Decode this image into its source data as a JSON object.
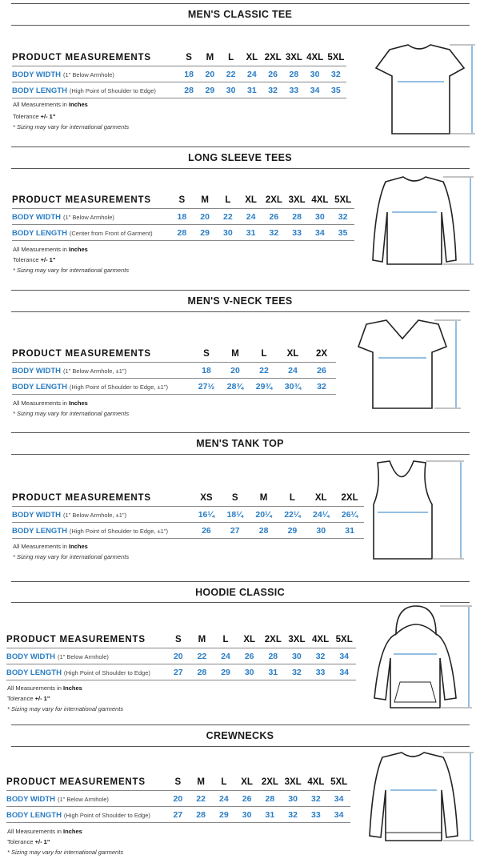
{
  "colors": {
    "accent": "#2a7dc4",
    "text": "#111111",
    "rule": "#555555"
  },
  "sections": [
    {
      "title": "MEN'S CLASSIC TEE",
      "header": "PRODUCT MEASUREMENTS",
      "sizes": [
        "S",
        "M",
        "L",
        "XL",
        "2XL",
        "3XL",
        "4XL",
        "5XL"
      ],
      "rows": [
        {
          "label": "BODY WIDTH",
          "note": "(1\" Below Armhole)",
          "values": [
            "18",
            "20",
            "22",
            "24",
            "26",
            "28",
            "30",
            "32"
          ]
        },
        {
          "label": "BODY LENGTH",
          "note": "(High Point of Shoulder to Edge)",
          "values": [
            "28",
            "29",
            "30",
            "31",
            "32",
            "33",
            "34",
            "35"
          ]
        }
      ],
      "units_prefix": "All Measurements in",
      "units": "Inches",
      "tolerance_prefix": "Tolerance",
      "tolerance": "+/- 1\"",
      "disclaimer": "* Sizing may vary for international garments",
      "garment_icon": "tshirt-icon"
    },
    {
      "title": "LONG SLEEVE TEES",
      "header": "PRODUCT MEASUREMENTS",
      "sizes": [
        "S",
        "M",
        "L",
        "XL",
        "2XL",
        "3XL",
        "4XL",
        "5XL"
      ],
      "rows": [
        {
          "label": "BODY WIDTH",
          "note": "(1\" Below Armhole)",
          "values": [
            "18",
            "20",
            "22",
            "24",
            "26",
            "28",
            "30",
            "32"
          ]
        },
        {
          "label": "BODY LENGTH",
          "note": "(Center from Front of Garment)",
          "values": [
            "28",
            "29",
            "30",
            "31",
            "32",
            "33",
            "34",
            "35"
          ]
        }
      ],
      "units_prefix": "All Measurements in",
      "units": "Inches",
      "tolerance_prefix": "Tolerance",
      "tolerance": "+/- 1\"",
      "disclaimer": "* Sizing may vary for international garments",
      "garment_icon": "long-sleeve-shirt-icon"
    },
    {
      "title": "MEN'S V-NECK TEES",
      "header": "PRODUCT MEASUREMENTS",
      "sizes": [
        "S",
        "M",
        "L",
        "XL",
        "2X"
      ],
      "rows": [
        {
          "label": "BODY WIDTH",
          "note": "(1\" Below Armhole, ±1\")",
          "values": [
            "18",
            "20",
            "22",
            "24",
            "26"
          ]
        },
        {
          "label": "BODY LENGTH",
          "note": "(High Point of Shoulder to Edge, ±1\")",
          "values": [
            "27½",
            "28¾",
            "29¾",
            "30¾",
            "32"
          ]
        }
      ],
      "units_prefix": "All Measurements in",
      "units": "Inches",
      "disclaimer": "* Sizing may vary for international garments",
      "garment_icon": "vneck-shirt-icon"
    },
    {
      "title": "MEN'S TANK TOP",
      "header": "PRODUCT MEASUREMENTS",
      "sizes": [
        "XS",
        "S",
        "M",
        "L",
        "XL",
        "2XL"
      ],
      "rows": [
        {
          "label": "BODY WIDTH",
          "note": "(1\" Below Armhole, ±1\")",
          "values": [
            "16¼",
            "18¼",
            "20¼",
            "22¼",
            "24¼",
            "26¼"
          ]
        },
        {
          "label": "BODY LENGTH",
          "note": "(High Point of Shoulder to Edge, ±1\")",
          "values": [
            "26",
            "27",
            "28",
            "29",
            "30",
            "31"
          ]
        }
      ],
      "units_prefix": "All Measurements in",
      "units": "Inches",
      "disclaimer": "* Sizing may vary for international garments",
      "garment_icon": "tank-top-icon"
    },
    {
      "title": "HOODIE CLASSIC",
      "header": "PRODUCT MEASUREMENTS",
      "sizes": [
        "S",
        "M",
        "L",
        "XL",
        "2XL",
        "3XL",
        "4XL",
        "5XL"
      ],
      "rows": [
        {
          "label": "BODY WIDTH",
          "note": "(1\" Below Armhole)",
          "values": [
            "20",
            "22",
            "24",
            "26",
            "28",
            "30",
            "32",
            "34"
          ]
        },
        {
          "label": "BODY LENGTH",
          "note": "(High Point of Shoulder to Edge)",
          "values": [
            "27",
            "28",
            "29",
            "30",
            "31",
            "32",
            "33",
            "34"
          ]
        }
      ],
      "units_prefix": "All Measurements in",
      "units": "Inches",
      "tolerance_prefix": "Tolerance",
      "tolerance": "+/- 1\"",
      "disclaimer": "* Sizing may vary for international garments",
      "garment_icon": "hoodie-icon"
    },
    {
      "title": "CREWNECKS",
      "header": "PRODUCT MEASUREMENTS",
      "sizes": [
        "S",
        "M",
        "L",
        "XL",
        "2XL",
        "3XL",
        "4XL",
        "5XL"
      ],
      "rows": [
        {
          "label": "BODY WIDTH",
          "note": "(1\" Below Armhole)",
          "values": [
            "20",
            "22",
            "24",
            "26",
            "28",
            "30",
            "32",
            "34"
          ]
        },
        {
          "label": "BODY LENGTH",
          "note": "(High Point of Shoulder to Edge)",
          "values": [
            "27",
            "28",
            "29",
            "30",
            "31",
            "32",
            "33",
            "34"
          ]
        }
      ],
      "units_prefix": "All Measurements in",
      "units": "Inches",
      "tolerance_prefix": "Tolerance",
      "tolerance": "+/- 1\"",
      "disclaimer": "* Sizing may vary for international garments",
      "garment_icon": "crewneck-sweater-icon"
    }
  ]
}
